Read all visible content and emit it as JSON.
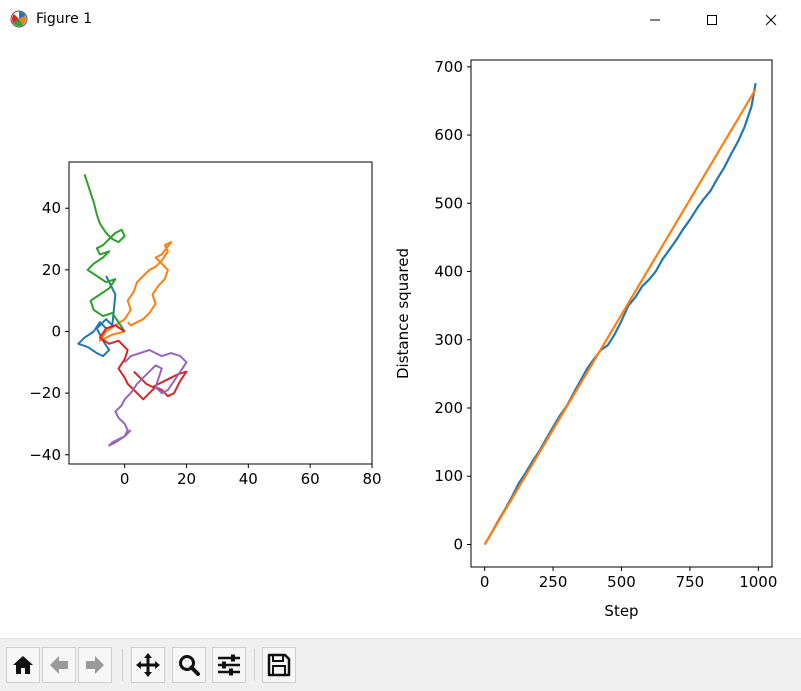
{
  "window": {
    "title": "Figure 1"
  },
  "icons": {
    "app": "matplotlib-figure-icon",
    "minimize": "minimize-icon",
    "maximize": "maximize-icon",
    "close": "close-icon"
  },
  "toolbar": {
    "buttons": [
      {
        "name": "home-button",
        "icon": "home-icon"
      },
      {
        "name": "back-button",
        "icon": "back-arrow-icon"
      },
      {
        "name": "forward-button",
        "icon": "forward-arrow-icon"
      },
      {
        "name": "pan-button",
        "icon": "pan-move-icon"
      },
      {
        "name": "zoom-button",
        "icon": "zoom-magnifier-icon"
      },
      {
        "name": "configure-subplots-button",
        "icon": "sliders-icon"
      },
      {
        "name": "save-button",
        "icon": "save-disk-icon"
      }
    ]
  },
  "colors": {
    "blue": "#1f77b4",
    "orange": "#ff7f0e",
    "green": "#2ca02c",
    "red": "#d62728",
    "purple": "#9467bd"
  },
  "chart_data": [
    {
      "type": "line",
      "title": "",
      "xlabel": "",
      "ylabel": "",
      "xlim": [
        -18,
        80
      ],
      "ylim": [
        -43,
        55
      ],
      "xticks": [
        0,
        20,
        40,
        60,
        80
      ],
      "yticks": [
        -40,
        -20,
        0,
        20,
        40
      ],
      "aspect": "equal",
      "series": [
        {
          "color": "#1f77b4",
          "x": [
            0,
            -3,
            -6,
            -8,
            -10,
            -13,
            -15,
            -12,
            -9,
            -7,
            -5,
            -7,
            -9,
            -6,
            -4,
            -3,
            -5,
            -6
          ],
          "y": [
            0,
            2,
            1,
            3,
            0,
            -2,
            -4,
            -5,
            -7,
            -8,
            -6,
            -3,
            1,
            4,
            2,
            12,
            16,
            18
          ]
        },
        {
          "color": "#ff7f0e",
          "x": [
            0,
            -4,
            -8,
            -6,
            -3,
            0,
            2,
            1,
            3,
            4,
            6,
            8,
            10,
            12,
            14,
            13,
            15,
            12,
            10,
            12,
            14,
            13,
            11,
            9,
            10,
            8,
            6,
            4,
            2,
            1
          ],
          "y": [
            0,
            -1,
            -3,
            0,
            2,
            4,
            7,
            10,
            13,
            16,
            18,
            20,
            21,
            23,
            26,
            28,
            29,
            25,
            24,
            22,
            20,
            17,
            15,
            12,
            9,
            6,
            4,
            3,
            2,
            3
          ]
        },
        {
          "color": "#2ca02c",
          "x": [
            0,
            -2,
            -4,
            -7,
            -10,
            -11,
            -8,
            -5,
            -3,
            -6,
            -9,
            -12,
            -10,
            -7,
            -5,
            -8,
            -9,
            -7,
            -5,
            -3,
            -1,
            0,
            -2,
            -4,
            -6,
            -8,
            -9,
            -10,
            -11,
            -12,
            -13
          ],
          "y": [
            0,
            3,
            6,
            5,
            7,
            10,
            12,
            14,
            17,
            16,
            18,
            20,
            22,
            24,
            26,
            25,
            27,
            28,
            30,
            32,
            33,
            31,
            29,
            30,
            32,
            35,
            38,
            42,
            45,
            48,
            51
          ]
        },
        {
          "color": "#d62728",
          "x": [
            0,
            -3,
            -6,
            -8,
            -5,
            -2,
            1,
            0,
            -2,
            0,
            1,
            3,
            5,
            6,
            8,
            10,
            12,
            14,
            16,
            18,
            20,
            17,
            15,
            13,
            11,
            9,
            7,
            5,
            3
          ],
          "y": [
            0,
            2,
            1,
            -2,
            -4,
            -3,
            -6,
            -9,
            -12,
            -15,
            -17,
            -19,
            -21,
            -22,
            -20,
            -18,
            -19,
            -21,
            -20,
            -16,
            -13,
            -14,
            -15,
            -16,
            -17,
            -18,
            -17,
            -15,
            -13
          ]
        },
        {
          "color": "#9467bd",
          "x": [
            0,
            2,
            5,
            8,
            10,
            12,
            15,
            18,
            20,
            18,
            16,
            14,
            12,
            10,
            11,
            12,
            10,
            8,
            6,
            4,
            2,
            0,
            -1,
            -3,
            -2,
            0,
            1,
            0,
            -2,
            -4,
            -5,
            -3,
            0,
            2
          ],
          "y": [
            -10,
            -8,
            -7,
            -6,
            -7,
            -8,
            -7,
            -8,
            -10,
            -13,
            -16,
            -19,
            -20,
            -18,
            -15,
            -12,
            -11,
            -13,
            -15,
            -17,
            -20,
            -22,
            -24,
            -26,
            -28,
            -30,
            -32,
            -34,
            -35,
            -36,
            -37,
            -36,
            -34,
            -32
          ]
        }
      ]
    },
    {
      "type": "line",
      "title": "",
      "xlabel": "Step",
      "ylabel": "Distance squared",
      "xlim": [
        -50,
        1050
      ],
      "ylim": [
        -33,
        710
      ],
      "xticks": [
        0,
        250,
        500,
        750,
        1000
      ],
      "yticks": [
        0,
        100,
        200,
        300,
        400,
        500,
        600,
        700
      ],
      "series": [
        {
          "color": "#1f77b4",
          "x": [
            0,
            25,
            50,
            75,
            100,
            125,
            150,
            175,
            200,
            225,
            250,
            275,
            300,
            325,
            350,
            375,
            400,
            425,
            450,
            475,
            500,
            525,
            550,
            575,
            600,
            625,
            650,
            675,
            700,
            725,
            750,
            775,
            800,
            825,
            850,
            875,
            900,
            925,
            950,
            975,
            990
          ],
          "y": [
            0,
            17,
            35,
            52,
            70,
            90,
            105,
            122,
            137,
            155,
            172,
            189,
            203,
            222,
            240,
            258,
            272,
            285,
            292,
            308,
            328,
            350,
            362,
            378,
            388,
            400,
            418,
            432,
            446,
            462,
            476,
            492,
            506,
            518,
            536,
            552,
            572,
            590,
            612,
            642,
            676
          ]
        },
        {
          "color": "#ff7f0e",
          "x": [
            0,
            990
          ],
          "y": [
            0,
            667
          ]
        }
      ]
    }
  ]
}
